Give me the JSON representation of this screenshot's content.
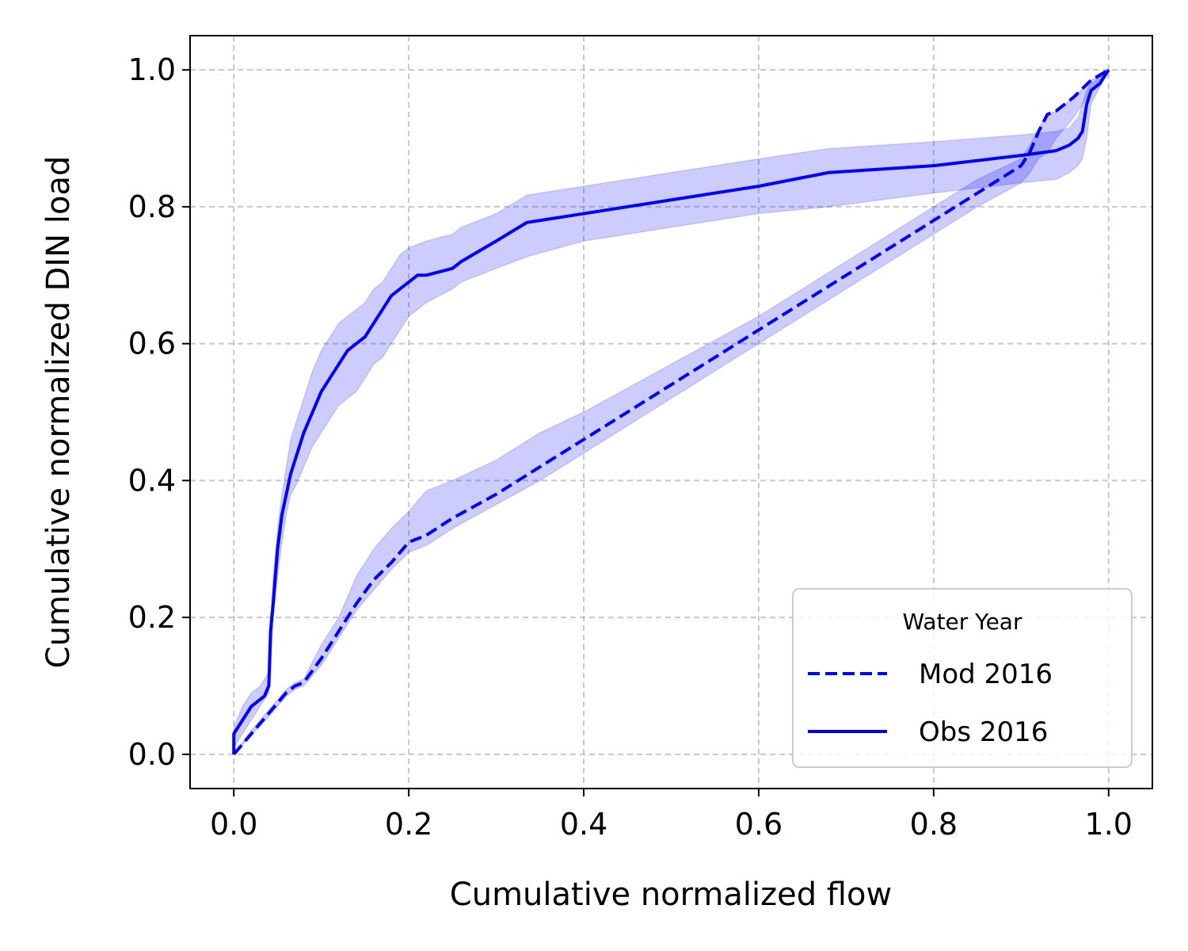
{
  "chart_data": {
    "type": "line",
    "xlabel": "Cumulative normalized flow",
    "ylabel": "Cumulative normalized DIN load",
    "xlim": [
      -0.05,
      1.05
    ],
    "ylim": [
      -0.05,
      1.05
    ],
    "xticks": [
      "0.0",
      "0.2",
      "0.4",
      "0.6",
      "0.8",
      "1.0"
    ],
    "yticks": [
      "0.0",
      "0.2",
      "0.4",
      "0.6",
      "0.8",
      "1.0"
    ],
    "grid": true,
    "legend": {
      "title": "Water Year",
      "position": "lower-right"
    },
    "colors": {
      "line": "#0000ff",
      "band": "#0000ff"
    },
    "series": [
      {
        "name": "Mod 2016",
        "style": "dashed",
        "x": [
          0.0,
          0.02,
          0.04,
          0.06,
          0.07,
          0.08,
          0.1,
          0.12,
          0.14,
          0.16,
          0.18,
          0.2,
          0.21,
          0.22,
          0.25,
          0.3,
          0.35,
          0.4,
          0.5,
          0.6,
          0.7,
          0.8,
          0.85,
          0.9,
          0.91,
          0.92,
          0.93,
          0.94,
          0.96,
          0.98,
          1.0
        ],
        "y": [
          0.0,
          0.03,
          0.06,
          0.09,
          0.1,
          0.105,
          0.14,
          0.18,
          0.22,
          0.255,
          0.28,
          0.31,
          0.315,
          0.32,
          0.345,
          0.38,
          0.42,
          0.46,
          0.54,
          0.62,
          0.7,
          0.78,
          0.82,
          0.86,
          0.88,
          0.91,
          0.935,
          0.94,
          0.96,
          0.985,
          1.0
        ],
        "lower": [
          0.0,
          0.028,
          0.055,
          0.085,
          0.095,
          0.1,
          0.13,
          0.17,
          0.21,
          0.24,
          0.27,
          0.295,
          0.3,
          0.305,
          0.33,
          0.365,
          0.4,
          0.44,
          0.52,
          0.6,
          0.68,
          0.76,
          0.8,
          0.835,
          0.85,
          0.87,
          0.88,
          0.9,
          0.93,
          0.97,
          1.0
        ],
        "upper": [
          0.0,
          0.035,
          0.065,
          0.095,
          0.105,
          0.11,
          0.16,
          0.2,
          0.26,
          0.3,
          0.33,
          0.355,
          0.37,
          0.385,
          0.4,
          0.43,
          0.47,
          0.5,
          0.57,
          0.64,
          0.72,
          0.8,
          0.84,
          0.87,
          0.89,
          0.915,
          0.935,
          0.94,
          0.96,
          0.985,
          1.0
        ]
      },
      {
        "name": "Obs 2016",
        "style": "solid",
        "x": [
          0.0,
          0.0,
          0.01,
          0.02,
          0.03,
          0.035,
          0.04,
          0.042,
          0.045,
          0.05,
          0.055,
          0.06,
          0.065,
          0.07,
          0.08,
          0.09,
          0.1,
          0.11,
          0.12,
          0.13,
          0.14,
          0.15,
          0.16,
          0.17,
          0.18,
          0.19,
          0.2,
          0.21,
          0.22,
          0.25,
          0.26,
          0.3,
          0.335,
          0.4,
          0.5,
          0.6,
          0.68,
          0.8,
          0.9,
          0.94,
          0.955,
          0.965,
          0.97,
          0.975,
          0.98,
          0.99,
          1.0
        ],
        "y": [
          0.0,
          0.03,
          0.05,
          0.07,
          0.08,
          0.085,
          0.1,
          0.18,
          0.22,
          0.3,
          0.35,
          0.38,
          0.41,
          0.43,
          0.47,
          0.5,
          0.53,
          0.55,
          0.57,
          0.59,
          0.6,
          0.61,
          0.63,
          0.65,
          0.67,
          0.68,
          0.69,
          0.7,
          0.7,
          0.71,
          0.72,
          0.75,
          0.777,
          0.79,
          0.81,
          0.83,
          0.85,
          0.86,
          0.875,
          0.882,
          0.89,
          0.9,
          0.91,
          0.95,
          0.97,
          0.98,
          1.0
        ],
        "lower": [
          0.0,
          0.01,
          0.03,
          0.05,
          0.07,
          0.08,
          0.09,
          0.12,
          0.2,
          0.26,
          0.31,
          0.35,
          0.38,
          0.39,
          0.42,
          0.45,
          0.47,
          0.49,
          0.51,
          0.52,
          0.53,
          0.55,
          0.57,
          0.58,
          0.6,
          0.62,
          0.64,
          0.65,
          0.66,
          0.68,
          0.69,
          0.71,
          0.727,
          0.75,
          0.77,
          0.79,
          0.8,
          0.82,
          0.835,
          0.84,
          0.85,
          0.86,
          0.87,
          0.9,
          0.95,
          0.975,
          1.0
        ],
        "upper": [
          0.0,
          0.04,
          0.07,
          0.09,
          0.1,
          0.11,
          0.12,
          0.2,
          0.26,
          0.33,
          0.38,
          0.42,
          0.46,
          0.48,
          0.52,
          0.56,
          0.59,
          0.61,
          0.63,
          0.64,
          0.65,
          0.66,
          0.68,
          0.69,
          0.71,
          0.73,
          0.74,
          0.745,
          0.75,
          0.76,
          0.77,
          0.79,
          0.817,
          0.83,
          0.85,
          0.87,
          0.885,
          0.895,
          0.905,
          0.91,
          0.915,
          0.93,
          0.95,
          0.97,
          0.98,
          0.99,
          1.0
        ]
      }
    ]
  }
}
